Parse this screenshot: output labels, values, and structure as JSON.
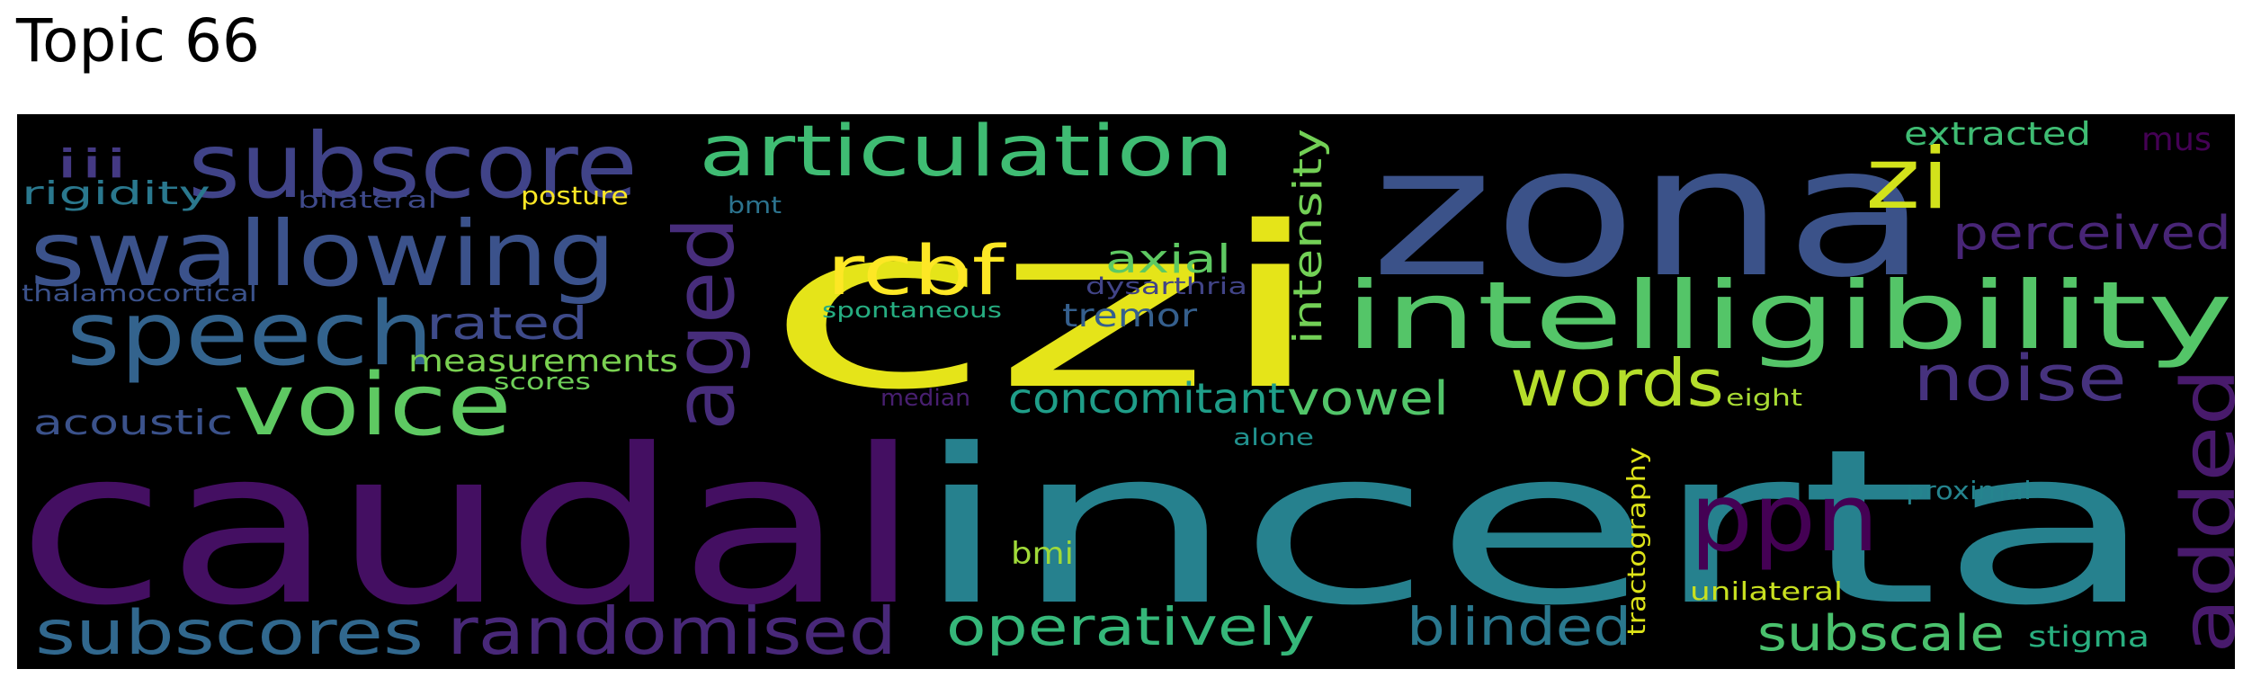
{
  "title": "Topic 66",
  "background_color": "#000000",
  "words": [
    {
      "text": "czi",
      "color": "#e5e419"
    },
    {
      "text": "incerta",
      "color": "#26818e"
    },
    {
      "text": "caudal",
      "color": "#440f62"
    },
    {
      "text": "zona",
      "color": "#3b5289"
    },
    {
      "text": "intelligibility",
      "color": "#54c568"
    },
    {
      "text": "swallowing",
      "color": "#3b528b"
    },
    {
      "text": "subscore",
      "color": "#404388"
    },
    {
      "text": "speech",
      "color": "#33638d"
    },
    {
      "text": "voice",
      "color": "#5ec962"
    },
    {
      "text": "articulation",
      "color": "#3fbc73"
    },
    {
      "text": "aged",
      "color": "#472d7b"
    },
    {
      "text": "rcbf",
      "color": "#fde725"
    },
    {
      "text": "zi",
      "color": "#d2e21b"
    },
    {
      "text": "words",
      "color": "#b5de2b"
    },
    {
      "text": "ppn",
      "color": "#440154"
    },
    {
      "text": "added",
      "color": "#481a6c"
    },
    {
      "text": "noise",
      "color": "#46327e"
    },
    {
      "text": "perceived",
      "color": "#482576"
    },
    {
      "text": "randomised",
      "color": "#482878"
    },
    {
      "text": "subscores",
      "color": "#31688e"
    },
    {
      "text": "operatively",
      "color": "#35b779"
    },
    {
      "text": "blinded",
      "color": "#2a788e"
    },
    {
      "text": "subscale",
      "color": "#4ac16d"
    },
    {
      "text": "rated",
      "color": "#3e4a89"
    },
    {
      "text": "vowel",
      "color": "#52c569"
    },
    {
      "text": "concomitant",
      "color": "#1f9e89"
    },
    {
      "text": "axial",
      "color": "#5ec962"
    },
    {
      "text": "intensity",
      "color": "#73d056"
    },
    {
      "text": "measurements",
      "color": "#7ad151"
    },
    {
      "text": "acoustic",
      "color": "#3b528b"
    },
    {
      "text": "tremor",
      "color": "#355f8d"
    },
    {
      "text": "extracted",
      "color": "#3fbc73"
    },
    {
      "text": "rigidity",
      "color": "#2a788e"
    },
    {
      "text": "iii",
      "color": "#443983"
    },
    {
      "text": "mus",
      "color": "#440154"
    },
    {
      "text": "bmi",
      "color": "#a0da39"
    },
    {
      "text": "tractography",
      "color": "#dde318"
    },
    {
      "text": "unilateral",
      "color": "#c8e020"
    },
    {
      "text": "stigma",
      "color": "#29af7f"
    },
    {
      "text": "proximal",
      "color": "#25848e"
    },
    {
      "text": "eight",
      "color": "#a8db34"
    },
    {
      "text": "alone",
      "color": "#21908d"
    },
    {
      "text": "median",
      "color": "#481f70"
    },
    {
      "text": "posture",
      "color": "#fde725"
    },
    {
      "text": "bilateral",
      "color": "#3e4989"
    },
    {
      "text": "thalamocortical",
      "color": "#3b528b"
    },
    {
      "text": "spontaneous",
      "color": "#26ad81"
    },
    {
      "text": "dysarthria",
      "color": "#414487"
    },
    {
      "text": "bmt",
      "color": "#2c738e"
    },
    {
      "text": "scores",
      "color": "#6ece58"
    }
  ]
}
